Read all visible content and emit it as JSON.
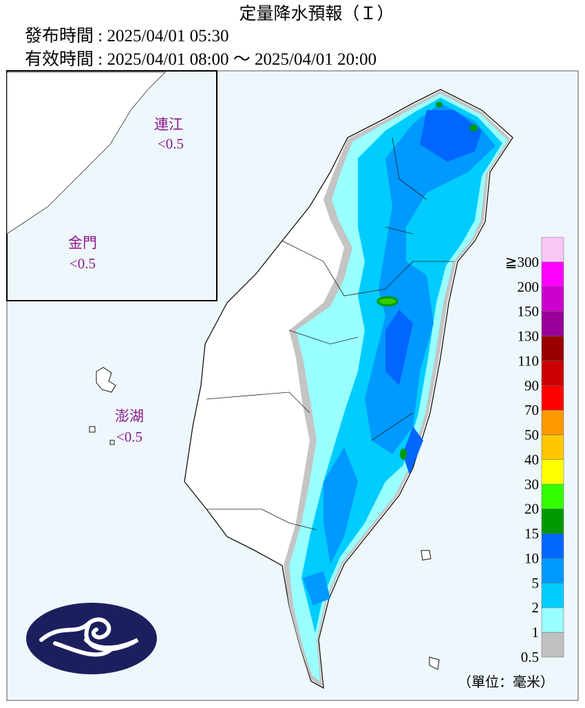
{
  "header": {
    "title": "定量降水預報（Ｉ）",
    "issued": "發布時間 : 2025/04/01 05:30",
    "valid": "有效時間 : 2025/04/01 08:00 ～ 2025/04/01 20:00"
  },
  "islands": [
    {
      "name": "連江",
      "amount": "<0.5"
    },
    {
      "name": "金門",
      "amount": "<0.5"
    },
    {
      "name": "澎湖",
      "amount": "<0.5"
    }
  ],
  "legend": {
    "items": [
      {
        "label": "≧300",
        "color": "#fbc8f6"
      },
      {
        "label": "200",
        "color": "#ff00ff"
      },
      {
        "label": "150",
        "color": "#cc00cc"
      },
      {
        "label": "130",
        "color": "#990099"
      },
      {
        "label": "110",
        "color": "#990000"
      },
      {
        "label": "90",
        "color": "#cc0000"
      },
      {
        "label": "70",
        "color": "#ff0000"
      },
      {
        "label": "50",
        "color": "#ff9900"
      },
      {
        "label": "40",
        "color": "#ffc800"
      },
      {
        "label": "30",
        "color": "#ffff00"
      },
      {
        "label": "20",
        "color": "#33ff00"
      },
      {
        "label": "15",
        "color": "#009900"
      },
      {
        "label": "10",
        "color": "#0066ff"
      },
      {
        "label": "5",
        "color": "#0099ff"
      },
      {
        "label": "2",
        "color": "#00ccff"
      },
      {
        "label": "1",
        "color": "#99ffff"
      },
      {
        "label": "0.5",
        "color": "#c0c0c0"
      }
    ],
    "unit": "（單位：毫米）"
  }
}
